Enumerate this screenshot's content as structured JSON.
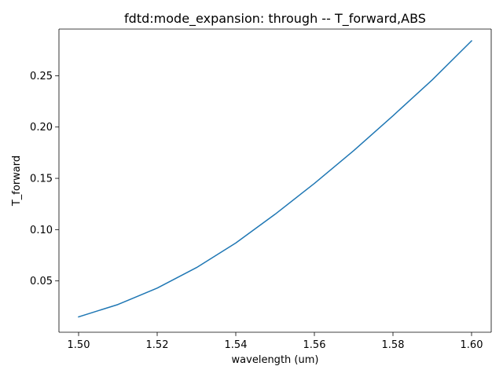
{
  "chart_data": {
    "type": "line",
    "title": "fdtd:mode_expansion: through -- T_forward,ABS",
    "xlabel": "wavelength (um)",
    "ylabel": "T_forward",
    "xlim": [
      1.495,
      1.605
    ],
    "ylim": [
      0.0,
      0.2955
    ],
    "xticks": [
      1.5,
      1.52,
      1.54,
      1.56,
      1.58,
      1.6
    ],
    "xtick_labels": [
      "1.50",
      "1.52",
      "1.54",
      "1.56",
      "1.58",
      "1.60"
    ],
    "yticks": [
      0.05,
      0.1,
      0.15,
      0.2,
      0.25
    ],
    "ytick_labels": [
      "0.05",
      "0.10",
      "0.15",
      "0.20",
      "0.25"
    ],
    "grid": false,
    "line_color": "#1f77b4",
    "series": [
      {
        "x": [
          1.5,
          1.51,
          1.52,
          1.53,
          1.54,
          1.55,
          1.56,
          1.57,
          1.58,
          1.59,
          1.6
        ],
        "values": [
          0.015,
          0.027,
          0.043,
          0.063,
          0.087,
          0.115,
          0.145,
          0.177,
          0.211,
          0.246,
          0.284
        ]
      }
    ]
  }
}
